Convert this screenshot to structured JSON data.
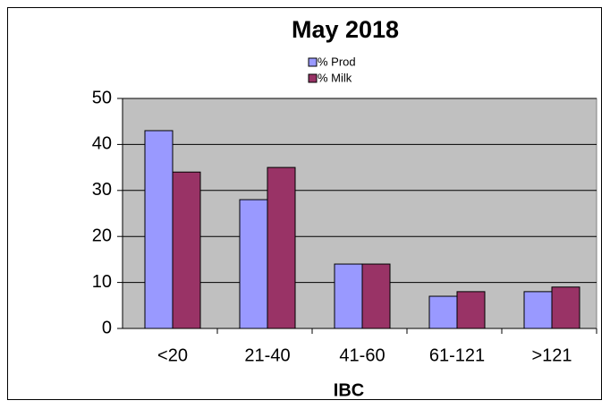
{
  "chart_data": {
    "type": "bar",
    "title": "May 2018",
    "x_label": "IBC",
    "categories": [
      "<20",
      "21-40",
      "41-60",
      "61-121",
      ">121"
    ],
    "series": [
      {
        "name": "% Prod",
        "color": "#9999ff",
        "values": [
          43,
          28,
          14,
          7,
          8
        ]
      },
      {
        "name": "% Milk",
        "color": "#993366",
        "values": [
          34,
          35,
          14,
          8,
          9
        ]
      }
    ],
    "ylim": [
      0,
      50
    ],
    "yticks": [
      0,
      10,
      20,
      30,
      40,
      50
    ],
    "grid": true,
    "legend": "top"
  }
}
